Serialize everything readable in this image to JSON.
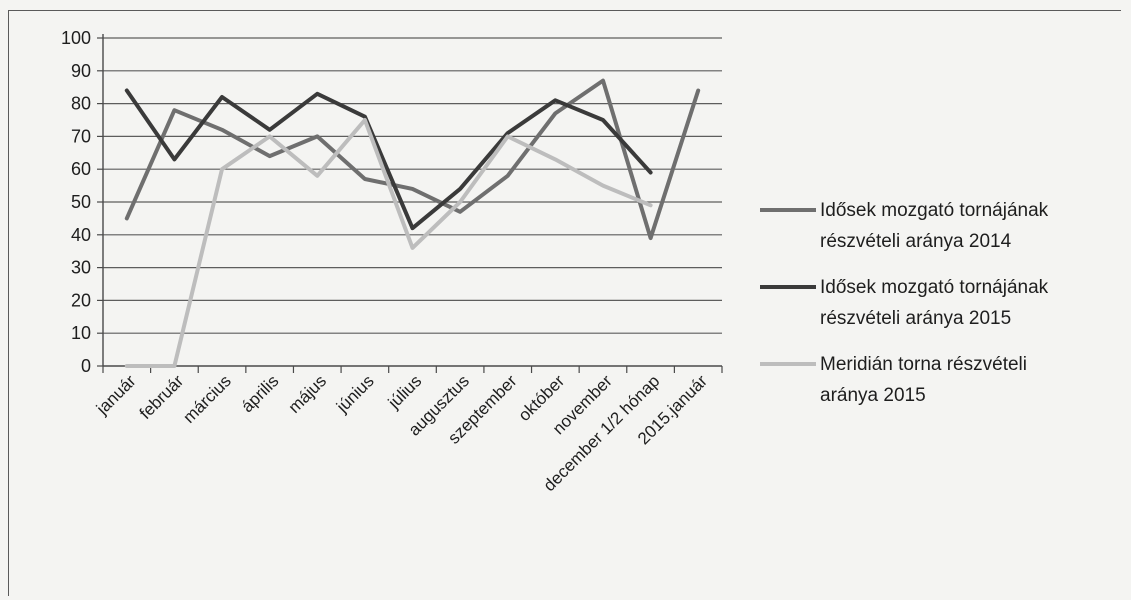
{
  "chart_data": {
    "type": "line",
    "title": "",
    "xlabel": "",
    "ylabel": "",
    "ylim": [
      0,
      100
    ],
    "yticks": [
      0,
      10,
      20,
      30,
      40,
      50,
      60,
      70,
      80,
      90,
      100
    ],
    "grid": true,
    "legend_position": "right",
    "categories": [
      "január",
      "február",
      "március",
      "április",
      "május",
      "június",
      "július",
      "augusztus",
      "szeptember",
      "október",
      "november",
      "december 1/2 hónap",
      "2015.január"
    ],
    "series": [
      {
        "name_lines": [
          "Idősek mozgató tornájának",
          "részvételi aránya 2014"
        ],
        "color": "#6f6f6f",
        "values": [
          45,
          78,
          72,
          64,
          70,
          57,
          54,
          47,
          58,
          77,
          87,
          39,
          84
        ]
      },
      {
        "name_lines": [
          "Idősek mozgató tornájának",
          "részvételi aránya 2015"
        ],
        "color": "#3a3a3a",
        "values": [
          84,
          63,
          82,
          72,
          83,
          76,
          42,
          54,
          71,
          81,
          75,
          59,
          null
        ]
      },
      {
        "name_lines": [
          "Meridián torna részvételi",
          "aránya 2015"
        ],
        "color": "#bdbdbd",
        "values": [
          0,
          0,
          60,
          70,
          58,
          75,
          36,
          50,
          70,
          63,
          55,
          49,
          null
        ]
      }
    ]
  }
}
